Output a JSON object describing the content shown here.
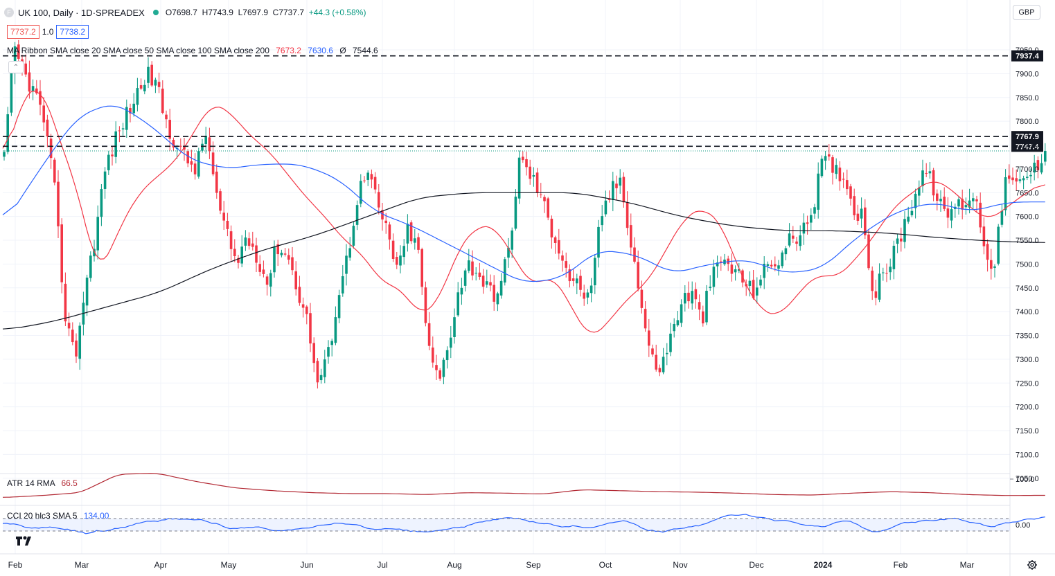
{
  "header": {
    "symbol": "UK 100",
    "interval": "Daily · 1D",
    "source": "SPREADEX",
    "separator": " · ",
    "open": "O7698.7",
    "high": "H7743.9",
    "low": "L7697.9",
    "close": "C7737.7",
    "change": "+44.3 (+0.58%)",
    "sym_icon": "F"
  },
  "quote": {
    "sell": "7737.2",
    "spread": "1.0",
    "buy": "7738.2"
  },
  "currency": "GBP",
  "indicators": {
    "ma_ribbon": {
      "label": "MA Ribbon SMA close 20 SMA close 50 SMA close 100 SMA close 200",
      "v20": "7673.2",
      "v50": "7630.6",
      "v100": "Ø",
      "v200": "7544.6"
    },
    "atr": {
      "label": "ATR 14 RMA",
      "value": "66.5"
    },
    "cci": {
      "label": "CCI 20 hlc3 SMA 5",
      "value": "134.00"
    }
  },
  "colors": {
    "up": "#089981",
    "down": "#f23645",
    "sma20": "#f23645",
    "sma50": "#2962ff",
    "sma200": "#131722",
    "atr": "#b22833",
    "cci": "#2962ff",
    "level_tag": "#131722"
  },
  "icons": {
    "collapse": "chevron-up-icon",
    "settings": "gear-icon",
    "logo": "tradingview-logo"
  },
  "chart_data": [
    {
      "type": "candlestick",
      "title": "UK 100, Daily · 1D · SPREADEX",
      "x_ticks": [
        "Feb",
        "Mar",
        "Apr",
        "May",
        "Jun",
        "Jul",
        "Aug",
        "Sep",
        "Oct",
        "Nov",
        "Dec",
        "2024",
        "Feb",
        "Mar"
      ],
      "y_ticks": [
        "7950.0",
        "7900.0",
        "7850.0",
        "7800.0",
        "7750.0",
        "7700.0",
        "7650.0",
        "7600.0",
        "7550.0",
        "7500.0",
        "7450.0",
        "7400.0",
        "7350.0",
        "7300.0",
        "7250.0",
        "7200.0",
        "7150.0",
        "7100.0",
        "7050.0"
      ],
      "ylim": [
        7020,
        7990
      ],
      "levels": [
        "7937.4",
        "7767.9",
        "7747.4"
      ],
      "anchors": {
        "close": [
          7720,
          7950,
          7900,
          7860,
          7800,
          7650,
          7400,
          7300,
          7450,
          7560,
          7700,
          7760,
          7810,
          7850,
          7900,
          7880,
          7800,
          7750,
          7720,
          7700,
          7780,
          7640,
          7560,
          7500,
          7560,
          7520,
          7460,
          7540,
          7520,
          7450,
          7380,
          7250,
          7300,
          7430,
          7520,
          7650,
          7690,
          7620,
          7560,
          7480,
          7580,
          7520,
          7320,
          7250,
          7340,
          7450,
          7500,
          7480,
          7440,
          7440,
          7540,
          7720,
          7690,
          7650,
          7580,
          7530,
          7470,
          7450,
          7420,
          7600,
          7650,
          7680,
          7550,
          7420,
          7300,
          7280,
          7350,
          7420,
          7440,
          7380,
          7470,
          7510,
          7490,
          7470,
          7440,
          7480,
          7500,
          7520,
          7560,
          7560,
          7620,
          7720,
          7700,
          7690,
          7620,
          7600,
          7430,
          7480,
          7520,
          7580,
          7640,
          7700,
          7660,
          7600,
          7620,
          7630,
          7650,
          7540,
          7490,
          7680,
          7660,
          7680,
          7700,
          7737.7
        ],
        "sma20": [
          7700,
          7850,
          7880,
          7760,
          7650,
          7470,
          7560,
          7640,
          7680,
          7710,
          7770,
          7840,
          7820,
          7770,
          7740,
          7690,
          7640,
          7600,
          7550,
          7520,
          7460,
          7450,
          7390,
          7420,
          7530,
          7580,
          7580,
          7510,
          7450,
          7480,
          7410,
          7340,
          7380,
          7430,
          7460,
          7530,
          7600,
          7620,
          7580,
          7470,
          7400,
          7390,
          7440,
          7480,
          7470,
          7510,
          7560,
          7620,
          7650,
          7680,
          7660,
          7620,
          7590,
          7620,
          7650,
          7673.2
        ],
        "sma50": [
          7580,
          7700,
          7810,
          7840,
          7790,
          7720,
          7700,
          7710,
          7710,
          7680,
          7610,
          7580,
          7540,
          7500,
          7460,
          7470,
          7530,
          7520,
          7480,
          7500,
          7510,
          7480,
          7490,
          7560,
          7610,
          7630,
          7610,
          7630,
          7630.6
        ],
        "sma200": [
          7360,
          7380,
          7410,
          7440,
          7490,
          7530,
          7560,
          7600,
          7640,
          7650,
          7650,
          7650,
          7630,
          7600,
          7580,
          7570,
          7570,
          7565,
          7555,
          7548,
          7544.6
        ],
        "atr": [
          62,
          66,
          72,
          110,
          112,
          95,
          82,
          76,
          72,
          70,
          70,
          68,
          72,
          71,
          69,
          78,
          76,
          74,
          73,
          71,
          68,
          67,
          71,
          74,
          72,
          68,
          66,
          66.5
        ],
        "cci": [
          40,
          -50,
          -40,
          -150,
          -60,
          40,
          100,
          80,
          -60,
          -40,
          -100,
          -40,
          40,
          -60,
          -80,
          -120,
          -60,
          40,
          120,
          40,
          -40,
          -20,
          60,
          -100,
          -80,
          20,
          180,
          100,
          60,
          -40,
          80,
          -140,
          20,
          80,
          100,
          -20,
          60,
          134
        ]
      }
    }
  ]
}
